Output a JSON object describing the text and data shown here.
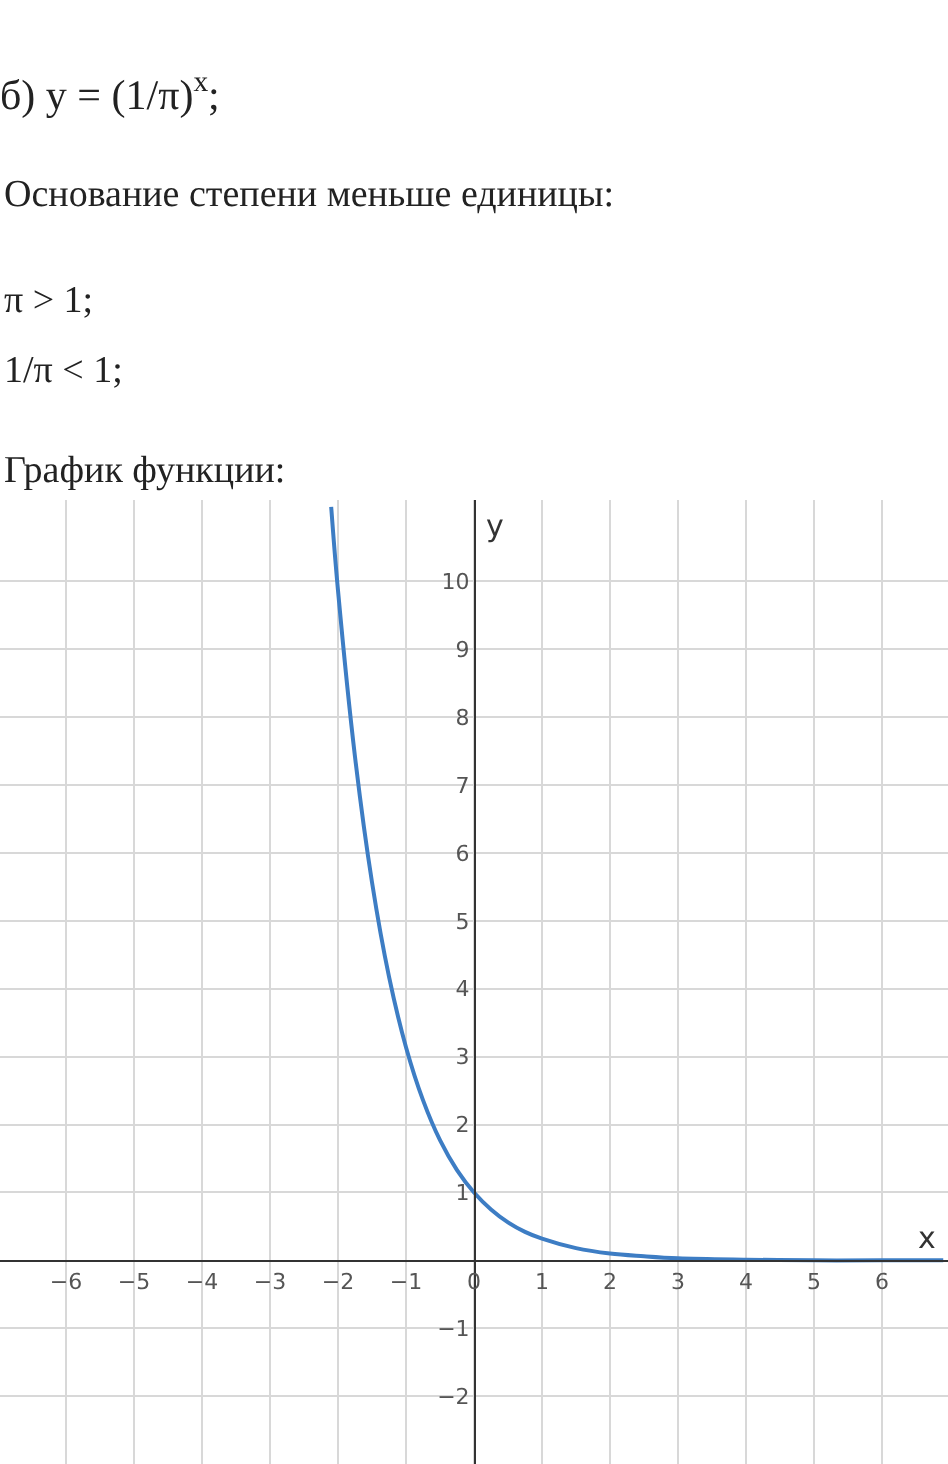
{
  "chart_data": {
    "type": "line",
    "title": "б) y = (1/π)$^{x}$;",
    "annotations": [
      "Основание степени меньше единицы:",
      "π > 1;",
      "1/π < 1;",
      "График функции:"
    ],
    "xlabel": "x",
    "ylabel": "y",
    "x": [
      -2.1,
      -2,
      -1.75,
      -1.5,
      -1.25,
      -1,
      -0.75,
      -0.5,
      -0.25,
      0,
      0.25,
      0.5,
      0.75,
      1,
      1.5,
      2,
      2.5,
      3,
      4,
      5,
      6,
      6.9
    ],
    "series": [
      {
        "color": "#3d7dc4",
        "values": [
          11.1,
          9.87,
          7.42,
          5.57,
          4.18,
          3.14,
          2.36,
          1.77,
          1.33,
          1,
          0.75,
          0.56,
          0.42,
          0.32,
          0.18,
          0.1,
          0.06,
          0.03,
          0.01,
          0,
          0,
          0
        ]
      }
    ],
    "xlim": [
      -6.97,
      6.97
    ],
    "ylim": [
      -3,
      11.2
    ],
    "xticks": [
      -6,
      -5,
      -4,
      -3,
      -2,
      -1,
      0,
      1,
      2,
      3,
      4,
      5,
      6
    ],
    "yticks": [
      -2,
      -1,
      1,
      2,
      3,
      4,
      5,
      6,
      7,
      8,
      9,
      10
    ],
    "grid": true
  }
}
